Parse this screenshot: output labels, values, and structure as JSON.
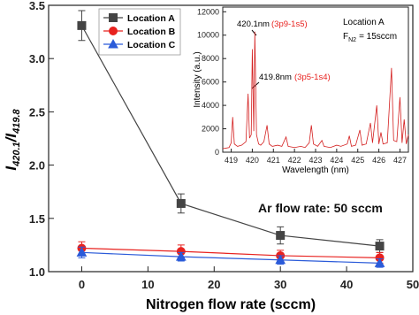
{
  "chart_data": [
    {
      "type": "line",
      "xlabel": "Nitrogen flow rate (sccm)",
      "ylabel": {
        "main1": "I",
        "sub1": "420.1",
        "sep": "/",
        "main2": "I",
        "sub2": "419.8"
      },
      "annotation": "Ar flow rate: 50 sccm",
      "legend": "upper left",
      "x": [
        0,
        15,
        30,
        45
      ],
      "xlim": [
        -5,
        50
      ],
      "xticks": [
        0,
        10,
        20,
        30,
        40,
        50
      ],
      "ylim": [
        1,
        3.5
      ],
      "yticks": [
        {
          "value": 1,
          "label": "1.0"
        },
        1.5,
        {
          "value": 2,
          "label": "2.0"
        },
        2.5,
        {
          "value": 3,
          "label": "3.0"
        },
        3.5
      ],
      "series": [
        {
          "name": "Location A",
          "color": "#444444",
          "marker": "square",
          "values": [
            3.31,
            1.64,
            1.34,
            1.24
          ],
          "errors": [
            0.14,
            0.09,
            0.08,
            0.06
          ]
        },
        {
          "name": "Location B",
          "color": "#e8221f",
          "marker": "circle",
          "values": [
            1.22,
            1.19,
            1.15,
            1.13
          ],
          "errors": [
            0.06,
            0.06,
            0.05,
            0.05
          ]
        },
        {
          "name": "Location C",
          "color": "#2b5bd9",
          "marker": "triangle",
          "values": [
            1.18,
            1.14,
            1.11,
            1.08
          ],
          "errors": [
            0.05,
            0.04,
            0.04,
            0.04
          ]
        }
      ]
    },
    {
      "type": "line",
      "xlabel": "Wavelength (nm)",
      "ylabel": "Intensity (a.u.)",
      "location": "Location A",
      "condition": {
        "symbol": "F",
        "sub": "N2",
        "rest": "= 15sccm"
      },
      "peak_labels": [
        {
          "wavelength": "420.1nm",
          "transition": "(3p9-1s5)"
        },
        {
          "wavelength": "419.8nm",
          "transition": "(3p5-1s4)"
        }
      ],
      "transition_color": "#e8221f",
      "x": [
        418.6,
        418.9,
        419.0,
        419.07,
        419.15,
        419.3,
        419.5,
        419.7,
        419.8,
        419.87,
        419.95,
        420.0,
        420.07,
        420.12,
        420.2,
        420.3,
        420.4,
        420.55,
        420.7,
        420.8,
        420.95,
        421.2,
        421.4,
        421.6,
        421.7,
        422.0,
        422.3,
        422.5,
        422.7,
        422.8,
        422.9,
        423.1,
        423.3,
        423.4,
        423.7,
        424.0,
        424.2,
        424.5,
        424.6,
        424.7,
        424.9,
        425.1,
        425.2,
        425.4,
        425.6,
        425.7,
        425.9,
        426.0,
        426.1,
        426.2,
        426.4,
        426.6,
        426.7,
        426.85,
        427.0,
        427.1,
        427.2,
        427.3,
        427.4
      ],
      "xlim": [
        418.6,
        427.4
      ],
      "xticks": [
        419,
        420,
        421,
        422,
        423,
        424,
        425,
        426,
        427
      ],
      "ylim": [
        0,
        12400
      ],
      "yticks": [
        0,
        2000,
        4000,
        6000,
        8000,
        10000,
        12000
      ],
      "series": [
        {
          "color": "#d42020",
          "values": [
            300,
            400,
            800,
            3000,
            700,
            500,
            600,
            900,
            5000,
            1200,
            1500,
            8800,
            1800,
            10300,
            1500,
            700,
            600,
            900,
            2300,
            700,
            500,
            600,
            500,
            1300,
            500,
            400,
            500,
            400,
            800,
            2300,
            700,
            500,
            1000,
            500,
            400,
            600,
            500,
            700,
            1400,
            500,
            600,
            1900,
            600,
            700,
            2500,
            800,
            4000,
            700,
            1700,
            700,
            800,
            7200,
            1000,
            900,
            4700,
            800,
            2800,
            700,
            1500
          ]
        }
      ]
    }
  ]
}
